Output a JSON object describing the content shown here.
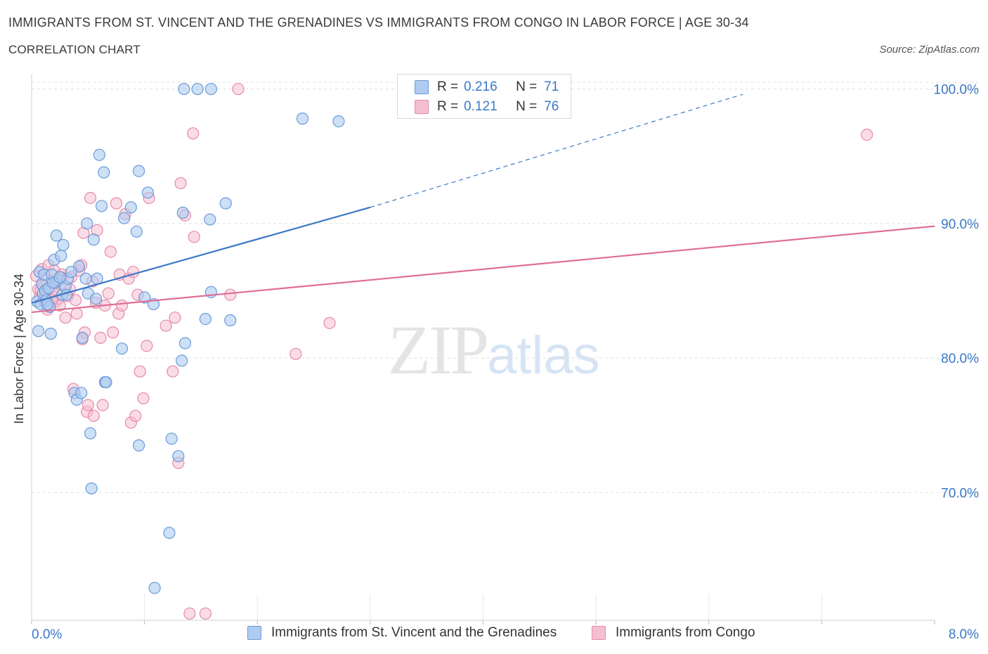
{
  "header": {
    "title": "IMMIGRANTS FROM ST. VINCENT AND THE GRENADINES VS IMMIGRANTS FROM CONGO IN LABOR FORCE | AGE 30-34",
    "subtitle": "CORRELATION CHART",
    "source": "Source: ZipAtlas.com"
  },
  "legend": {
    "r_label": "R =",
    "n_label": "N =",
    "series1": {
      "r": "0.216",
      "n": "71"
    },
    "series2": {
      "r": "0.121",
      "n": "76"
    }
  },
  "watermark": {
    "zip": "ZIP",
    "atlas": "atlas"
  },
  "colors": {
    "series1_fill": "#aecbf0",
    "series1_stroke": "#6a9bd8",
    "series1_line": "#3a78c7",
    "series2_fill": "#f5bfd2",
    "series2_stroke": "#e58aa8",
    "series2_line": "#e06e96",
    "tick_label": "#3a78c7",
    "grid": "#e1e1e1"
  },
  "chart_data": {
    "type": "scatter",
    "title": "IMMIGRANTS FROM ST. VINCENT AND THE GRENADINES VS IMMIGRANTS FROM CONGO IN LABOR FORCE | AGE 30-34",
    "xlabel": "",
    "ylabel": "In Labor Force | Age 30-34",
    "xlim": [
      0,
      8
    ],
    "ylim": [
      60.5,
      100.5
    ],
    "x_tick_labels": [
      "0.0%",
      "8.0%"
    ],
    "y_ticks": [
      70,
      80,
      90,
      100
    ],
    "y_tick_labels": [
      "70.0%",
      "80.0%",
      "90.0%",
      "100.0%"
    ],
    "grid": "horizontal dashed",
    "legend": "top-center and bottom",
    "series": [
      {
        "name": "Immigrants from St. Vincent and the Grenadines",
        "r": 0.216,
        "n": 71,
        "trend": {
          "x0": 0.0,
          "y0": 84.1,
          "x1": 3.0,
          "y1": 91.2,
          "dashed_to": {
            "x": 6.3,
            "y": 99.6
          }
        },
        "points": [
          [
            0.05,
            84.2
          ],
          [
            0.07,
            86.4
          ],
          [
            0.06,
            82.0
          ],
          [
            0.08,
            84.0
          ],
          [
            0.09,
            85.5
          ],
          [
            0.1,
            84.8
          ],
          [
            0.11,
            86.2
          ],
          [
            0.12,
            85.0
          ],
          [
            0.13,
            84.3
          ],
          [
            0.15,
            85.2
          ],
          [
            0.16,
            83.8
          ],
          [
            0.17,
            81.8
          ],
          [
            0.18,
            86.2
          ],
          [
            0.2,
            87.3
          ],
          [
            0.21,
            85.6
          ],
          [
            0.22,
            89.1
          ],
          [
            0.24,
            85.8
          ],
          [
            0.26,
            87.6
          ],
          [
            0.27,
            84.7
          ],
          [
            0.28,
            88.4
          ],
          [
            0.3,
            85.3
          ],
          [
            0.31,
            84.7
          ],
          [
            0.32,
            85.9
          ],
          [
            0.38,
            77.4
          ],
          [
            0.4,
            76.9
          ],
          [
            0.42,
            86.8
          ],
          [
            0.44,
            77.4
          ],
          [
            0.45,
            81.5
          ],
          [
            0.48,
            85.9
          ],
          [
            0.49,
            90.0
          ],
          [
            0.5,
            84.8
          ],
          [
            0.52,
            74.4
          ],
          [
            0.53,
            70.3
          ],
          [
            0.55,
            88.8
          ],
          [
            0.57,
            84.4
          ],
          [
            0.58,
            85.9
          ],
          [
            0.6,
            95.1
          ],
          [
            0.62,
            91.3
          ],
          [
            0.64,
            93.8
          ],
          [
            0.65,
            78.2
          ],
          [
            0.66,
            78.2
          ],
          [
            0.8,
            80.7
          ],
          [
            0.82,
            90.4
          ],
          [
            0.88,
            91.2
          ],
          [
            0.93,
            89.4
          ],
          [
            0.95,
            93.9
          ],
          [
            0.95,
            73.5
          ],
          [
            1.0,
            84.5
          ],
          [
            1.03,
            92.3
          ],
          [
            1.08,
            84.0
          ],
          [
            1.09,
            62.9
          ],
          [
            1.22,
            67.0
          ],
          [
            1.24,
            74.0
          ],
          [
            1.3,
            72.7
          ],
          [
            1.33,
            79.8
          ],
          [
            1.34,
            90.8
          ],
          [
            1.36,
            81.1
          ],
          [
            1.35,
            100.0
          ],
          [
            1.47,
            100.0
          ],
          [
            1.59,
            100.0
          ],
          [
            1.54,
            82.9
          ],
          [
            1.58,
            90.3
          ],
          [
            1.59,
            84.9
          ],
          [
            1.72,
            91.5
          ],
          [
            1.76,
            82.8
          ],
          [
            2.4,
            97.8
          ],
          [
            2.72,
            97.6
          ],
          [
            0.14,
            84.0
          ],
          [
            0.19,
            85.6
          ],
          [
            0.25,
            86.0
          ],
          [
            0.35,
            86.4
          ]
        ]
      },
      {
        "name": "Immigrants from Congo",
        "r": 0.121,
        "n": 76,
        "trend": {
          "x0": 0.0,
          "y0": 83.4,
          "x1": 8.0,
          "y1": 89.8
        },
        "points": [
          [
            0.04,
            86.1
          ],
          [
            0.06,
            85.1
          ],
          [
            0.07,
            84.5
          ],
          [
            0.08,
            85.0
          ],
          [
            0.09,
            86.6
          ],
          [
            0.1,
            85.4
          ],
          [
            0.11,
            84.2
          ],
          [
            0.12,
            84.7
          ],
          [
            0.13,
            85.8
          ],
          [
            0.14,
            83.6
          ],
          [
            0.15,
            86.9
          ],
          [
            0.17,
            85.2
          ],
          [
            0.19,
            84.9
          ],
          [
            0.2,
            86.5
          ],
          [
            0.21,
            84.2
          ],
          [
            0.22,
            85.7
          ],
          [
            0.24,
            84.4
          ],
          [
            0.25,
            83.9
          ],
          [
            0.27,
            86.2
          ],
          [
            0.29,
            85.3
          ],
          [
            0.3,
            83.0
          ],
          [
            0.32,
            84.6
          ],
          [
            0.34,
            85.1
          ],
          [
            0.35,
            86.0
          ],
          [
            0.37,
            77.7
          ],
          [
            0.39,
            84.3
          ],
          [
            0.4,
            83.3
          ],
          [
            0.42,
            86.5
          ],
          [
            0.44,
            86.9
          ],
          [
            0.45,
            81.4
          ],
          [
            0.46,
            89.3
          ],
          [
            0.47,
            81.9
          ],
          [
            0.49,
            76.0
          ],
          [
            0.5,
            76.5
          ],
          [
            0.52,
            91.9
          ],
          [
            0.54,
            85.7
          ],
          [
            0.55,
            75.7
          ],
          [
            0.57,
            84.1
          ],
          [
            0.58,
            89.5
          ],
          [
            0.61,
            81.5
          ],
          [
            0.63,
            76.5
          ],
          [
            0.65,
            83.9
          ],
          [
            0.68,
            84.8
          ],
          [
            0.7,
            87.9
          ],
          [
            0.72,
            81.9
          ],
          [
            0.75,
            91.5
          ],
          [
            0.77,
            83.3
          ],
          [
            0.78,
            86.2
          ],
          [
            0.8,
            83.9
          ],
          [
            0.83,
            90.7
          ],
          [
            0.86,
            85.9
          ],
          [
            0.88,
            75.2
          ],
          [
            0.9,
            86.4
          ],
          [
            0.92,
            75.7
          ],
          [
            0.94,
            84.7
          ],
          [
            0.96,
            79.0
          ],
          [
            0.99,
            77.0
          ],
          [
            1.02,
            80.9
          ],
          [
            1.04,
            91.9
          ],
          [
            1.19,
            82.4
          ],
          [
            1.25,
            79.0
          ],
          [
            1.27,
            83.0
          ],
          [
            1.3,
            72.2
          ],
          [
            1.32,
            93.0
          ],
          [
            1.36,
            90.6
          ],
          [
            1.4,
            61.0
          ],
          [
            1.43,
            96.7
          ],
          [
            1.44,
            89.0
          ],
          [
            1.54,
            61.0
          ],
          [
            1.76,
            84.7
          ],
          [
            1.83,
            100.0
          ],
          [
            2.34,
            80.3
          ],
          [
            2.64,
            82.6
          ],
          [
            7.4,
            96.6
          ],
          [
            0.18,
            84.3
          ],
          [
            0.26,
            86.0
          ]
        ]
      }
    ]
  },
  "bottom_legend": {
    "item1": "Immigrants from St. Vincent and the Grenadines",
    "item2": "Immigrants from Congo"
  }
}
